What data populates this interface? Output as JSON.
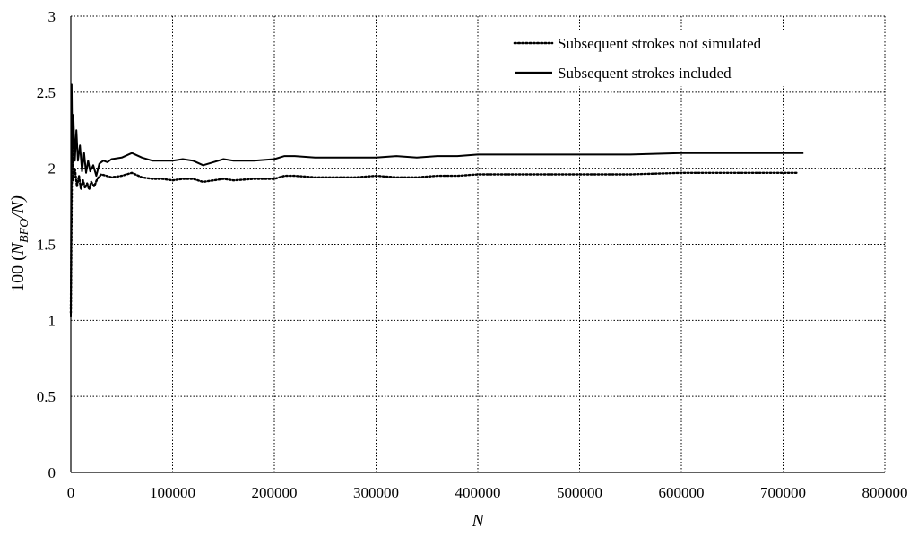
{
  "chart_data": {
    "type": "line",
    "title": "",
    "xlabel": "N",
    "ylabel": {
      "prefix": "100 (",
      "n": "N",
      "sub": "BFO",
      "suffix": "/N)"
    },
    "xlim": [
      0,
      800000
    ],
    "ylim": [
      0,
      3
    ],
    "x_ticks": [
      0,
      100000,
      200000,
      300000,
      400000,
      500000,
      600000,
      700000,
      800000
    ],
    "y_ticks": [
      0,
      0.5,
      1,
      1.5,
      2,
      2.5,
      3
    ],
    "grid": true,
    "legend_position": "top-right",
    "series": [
      {
        "name": "Subsequent strokes not simulated",
        "style": "dotted",
        "color": "#000000",
        "x": [
          0,
          1500,
          2500,
          4000,
          6000,
          8000,
          10000,
          12000,
          14000,
          16000,
          18000,
          20000,
          23000,
          26000,
          30000,
          35000,
          40000,
          50000,
          60000,
          70000,
          80000,
          90000,
          100000,
          110000,
          120000,
          130000,
          140000,
          150000,
          160000,
          180000,
          200000,
          210000,
          220000,
          240000,
          260000,
          280000,
          300000,
          320000,
          340000,
          360000,
          380000,
          400000,
          450000,
          500000,
          550000,
          600000,
          650000,
          700000,
          715000
        ],
        "y": [
          1.05,
          2.35,
          1.92,
          2.0,
          1.88,
          1.95,
          1.86,
          1.92,
          1.87,
          1.9,
          1.86,
          1.91,
          1.88,
          1.93,
          1.96,
          1.95,
          1.94,
          1.95,
          1.97,
          1.94,
          1.93,
          1.93,
          1.92,
          1.93,
          1.93,
          1.91,
          1.92,
          1.93,
          1.92,
          1.93,
          1.93,
          1.95,
          1.95,
          1.94,
          1.94,
          1.94,
          1.95,
          1.94,
          1.94,
          1.95,
          1.95,
          1.96,
          1.96,
          1.96,
          1.96,
          1.97,
          1.97,
          1.97,
          1.97
        ]
      },
      {
        "name": "Subsequent strokes included",
        "style": "solid",
        "color": "#000000",
        "x": [
          0,
          800,
          1500,
          2500,
          4000,
          5500,
          7000,
          9000,
          11000,
          13000,
          15000,
          17000,
          19000,
          22000,
          25000,
          28000,
          32000,
          36000,
          40000,
          50000,
          60000,
          70000,
          80000,
          90000,
          100000,
          110000,
          120000,
          130000,
          140000,
          150000,
          160000,
          180000,
          200000,
          210000,
          220000,
          240000,
          260000,
          280000,
          300000,
          320000,
          340000,
          360000,
          380000,
          400000,
          450000,
          500000,
          550000,
          600000,
          650000,
          700000,
          720000
        ],
        "y": [
          1.02,
          2.55,
          2.1,
          2.35,
          2.05,
          2.25,
          2.05,
          2.15,
          1.98,
          2.1,
          1.97,
          2.05,
          1.98,
          2.02,
          1.95,
          2.03,
          2.05,
          2.04,
          2.06,
          2.07,
          2.1,
          2.07,
          2.05,
          2.05,
          2.05,
          2.06,
          2.05,
          2.02,
          2.04,
          2.06,
          2.05,
          2.05,
          2.06,
          2.08,
          2.08,
          2.07,
          2.07,
          2.07,
          2.07,
          2.08,
          2.07,
          2.08,
          2.08,
          2.09,
          2.09,
          2.09,
          2.09,
          2.1,
          2.1,
          2.1,
          2.1
        ]
      }
    ]
  }
}
